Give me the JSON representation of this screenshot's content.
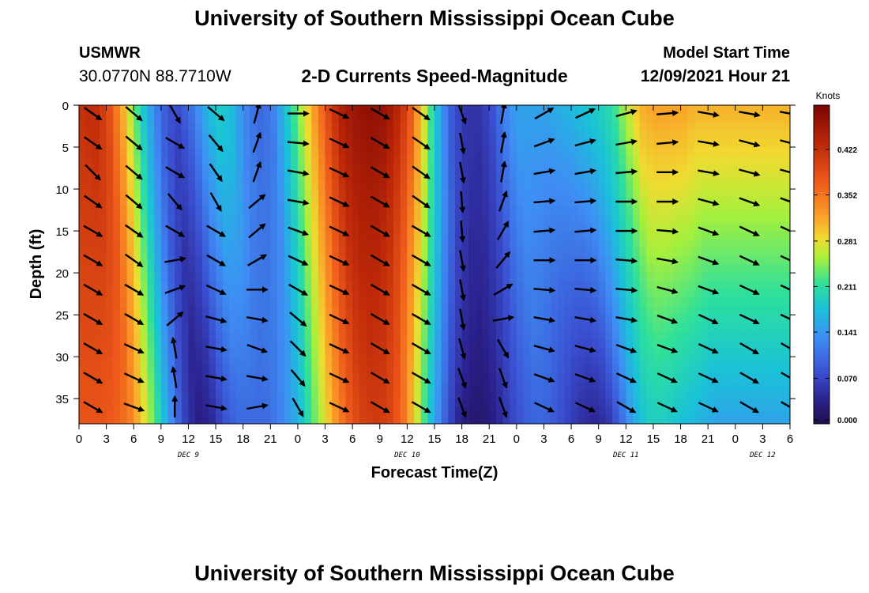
{
  "header": {
    "title": "University of Southern Mississippi Ocean Cube",
    "station": "USMWR",
    "coordinates": "30.0770N  88.7710W",
    "subtitle": "2-D Currents Speed-Magnitude",
    "model_start_label": "Model Start Time",
    "model_start_value": "12/09/2021 Hour 21"
  },
  "footer": {
    "title": "University of Southern Mississippi Ocean Cube"
  },
  "chart_data": {
    "type": "heatmap",
    "title": "2-D Currents Speed-Magnitude",
    "xlabel": "Forecast Time(Z)",
    "ylabel": "Depth (ft)",
    "xlim": [
      0,
      78
    ],
    "ylim": [
      38,
      0
    ],
    "x_ticks": [
      0,
      3,
      6,
      9,
      12,
      15,
      18,
      21,
      24,
      27,
      30,
      33,
      36,
      39,
      42,
      45,
      48,
      51,
      54,
      57,
      60,
      63,
      66,
      69,
      72,
      75,
      78
    ],
    "x_tick_labels": [
      "0",
      "3",
      "6",
      "9",
      "12",
      "15",
      "18",
      "21",
      "0",
      "3",
      "6",
      "9",
      "12",
      "15",
      "18",
      "21",
      "0",
      "3",
      "6",
      "9",
      "12",
      "15",
      "18",
      "21",
      "0",
      "3",
      "6"
    ],
    "y_ticks": [
      0,
      5,
      10,
      15,
      20,
      25,
      30,
      35
    ],
    "y_tick_labels": [
      "0",
      "5",
      "10",
      "15",
      "20",
      "25",
      "30",
      "35"
    ],
    "day_labels": [
      {
        "text": "DEC 9",
        "x": 12
      },
      {
        "text": "DEC 10",
        "x": 36
      },
      {
        "text": "DEC 11",
        "x": 60
      },
      {
        "text": "DEC 12",
        "x": 75
      }
    ],
    "colorbar": {
      "title": "Knots",
      "min": 0.0,
      "max": 0.49,
      "ticks": [
        0.0,
        0.07,
        0.141,
        0.211,
        0.281,
        0.352,
        0.422
      ],
      "tick_labels": [
        "0.000",
        "0.070",
        "0.141",
        "0.211",
        "0.281",
        "0.352",
        "0.422"
      ]
    },
    "speed_profile_by_time": {
      "hours": [
        0,
        1.5,
        3,
        4.5,
        6,
        7.5,
        9,
        10.5,
        12,
        13.5,
        15,
        16.5,
        18,
        19.5,
        21,
        22.5,
        24,
        25.5,
        27,
        28.5,
        30,
        31.5,
        33,
        34.5,
        36,
        37.5,
        39,
        40.5,
        42,
        43.5,
        45,
        46.5,
        48,
        49.5,
        51,
        52.5,
        54,
        55.5,
        57,
        58.5,
        60,
        61.5,
        63,
        64.5,
        66,
        67.5,
        69,
        70.5,
        72,
        73.5,
        75,
        76.5,
        78
      ],
      "surface_knots": [
        0.42,
        0.43,
        0.4,
        0.33,
        0.24,
        0.16,
        0.1,
        0.07,
        0.1,
        0.15,
        0.19,
        0.18,
        0.13,
        0.1,
        0.11,
        0.17,
        0.24,
        0.31,
        0.38,
        0.44,
        0.46,
        0.47,
        0.47,
        0.45,
        0.4,
        0.3,
        0.19,
        0.1,
        0.06,
        0.05,
        0.07,
        0.12,
        0.15,
        0.15,
        0.15,
        0.16,
        0.17,
        0.18,
        0.19,
        0.21,
        0.26,
        0.31,
        0.32,
        0.32,
        0.32,
        0.31,
        0.31,
        0.31,
        0.31,
        0.31,
        0.31,
        0.31,
        0.31
      ],
      "bottom_knots": [
        0.38,
        0.37,
        0.35,
        0.29,
        0.22,
        0.14,
        0.07,
        0.03,
        0.04,
        0.08,
        0.1,
        0.1,
        0.1,
        0.12,
        0.15,
        0.2,
        0.26,
        0.32,
        0.37,
        0.4,
        0.41,
        0.4,
        0.36,
        0.28,
        0.18,
        0.1,
        0.04,
        0.02,
        0.02,
        0.04,
        0.07,
        0.09,
        0.1,
        0.09,
        0.07,
        0.05,
        0.04,
        0.05,
        0.1,
        0.16,
        0.19,
        0.19,
        0.18,
        0.17,
        0.16,
        0.15,
        0.15,
        0.15,
        0.15,
        0.15,
        0.15,
        0.15,
        0.15
      ]
    },
    "vector_times": [
      1.5,
      6,
      10.5,
      15,
      19.5,
      24,
      28.5,
      33,
      37.5,
      42,
      46.5,
      51,
      55.5,
      60,
      64.5,
      69,
      73.5,
      78
    ],
    "vector_depths": [
      1,
      4.5,
      8,
      11.5,
      15,
      18.5,
      22,
      25.5,
      29,
      32.5,
      36
    ],
    "vector_directions_deg": [
      [
        -35,
        -35,
        -45,
        -35,
        -30,
        -30,
        -30,
        -30,
        -30,
        -30,
        -30
      ],
      [
        -40,
        -40,
        -40,
        -40,
        -35,
        -35,
        -30,
        -30,
        -25,
        -25,
        -20
      ],
      [
        -60,
        -30,
        -30,
        -50,
        -30,
        10,
        20,
        40,
        100,
        100,
        90
      ],
      [
        -40,
        -50,
        -55,
        -60,
        -30,
        -30,
        -25,
        -15,
        -10,
        -10,
        -10
      ],
      [
        75,
        70,
        70,
        40,
        40,
        30,
        0,
        -10,
        -20,
        -10,
        10
      ],
      [
        0,
        -5,
        -10,
        -10,
        -20,
        -25,
        -30,
        -40,
        -45,
        -50,
        -60
      ],
      [
        -25,
        -25,
        -25,
        -25,
        -25,
        -25,
        -25,
        -25,
        -25,
        -25,
        -25
      ],
      [
        -30,
        -30,
        -30,
        -30,
        -30,
        -30,
        -30,
        -30,
        -30,
        -30,
        -30
      ],
      [
        -35,
        -35,
        -35,
        -35,
        -30,
        -30,
        -30,
        -30,
        -30,
        -30,
        -30
      ],
      [
        -70,
        -80,
        -80,
        -85,
        -85,
        -80,
        -80,
        -80,
        -75,
        -70,
        -70
      ],
      [
        80,
        80,
        80,
        70,
        60,
        50,
        30,
        10,
        -60,
        -70,
        -70
      ],
      [
        30,
        20,
        10,
        5,
        5,
        0,
        -5,
        -10,
        -15,
        -20,
        -25
      ],
      [
        25,
        15,
        10,
        5,
        5,
        0,
        -5,
        -10,
        -15,
        -20,
        -25
      ],
      [
        15,
        10,
        5,
        0,
        0,
        -5,
        -5,
        -10,
        -20,
        -25,
        -30
      ],
      [
        5,
        5,
        0,
        0,
        -5,
        -10,
        -15,
        -20,
        -20,
        -25,
        -25
      ],
      [
        -10,
        -10,
        -10,
        -15,
        -20,
        -20,
        -20,
        -25,
        -25,
        -25,
        -25
      ],
      [
        -10,
        -15,
        -15,
        -20,
        -25,
        -25,
        -25,
        -25,
        -30,
        -30,
        -30
      ],
      [
        -10,
        -15,
        -15,
        -20,
        -25,
        -25,
        -25,
        -25,
        -30,
        -30,
        -30
      ]
    ]
  }
}
